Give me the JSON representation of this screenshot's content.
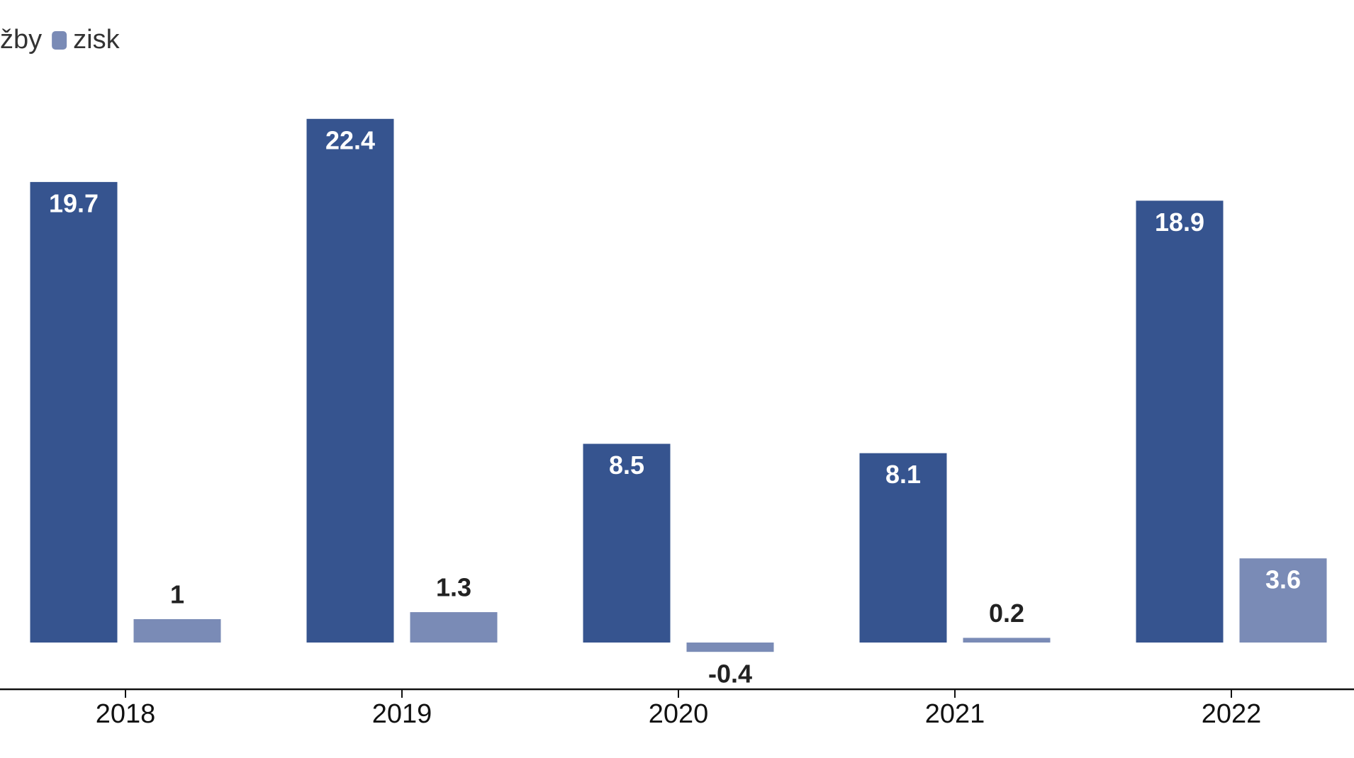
{
  "chart_data": {
    "type": "bar",
    "categories": [
      "2018",
      "2019",
      "2020",
      "2021",
      "2022"
    ],
    "series": [
      {
        "name": "žby",
        "color": "#36548f",
        "values": [
          19.7,
          22.4,
          8.5,
          8.1,
          18.9
        ]
      },
      {
        "name": "zisk",
        "color": "#7a8bb6",
        "values": [
          1,
          1.3,
          -0.4,
          0.2,
          3.6
        ]
      }
    ]
  }
}
